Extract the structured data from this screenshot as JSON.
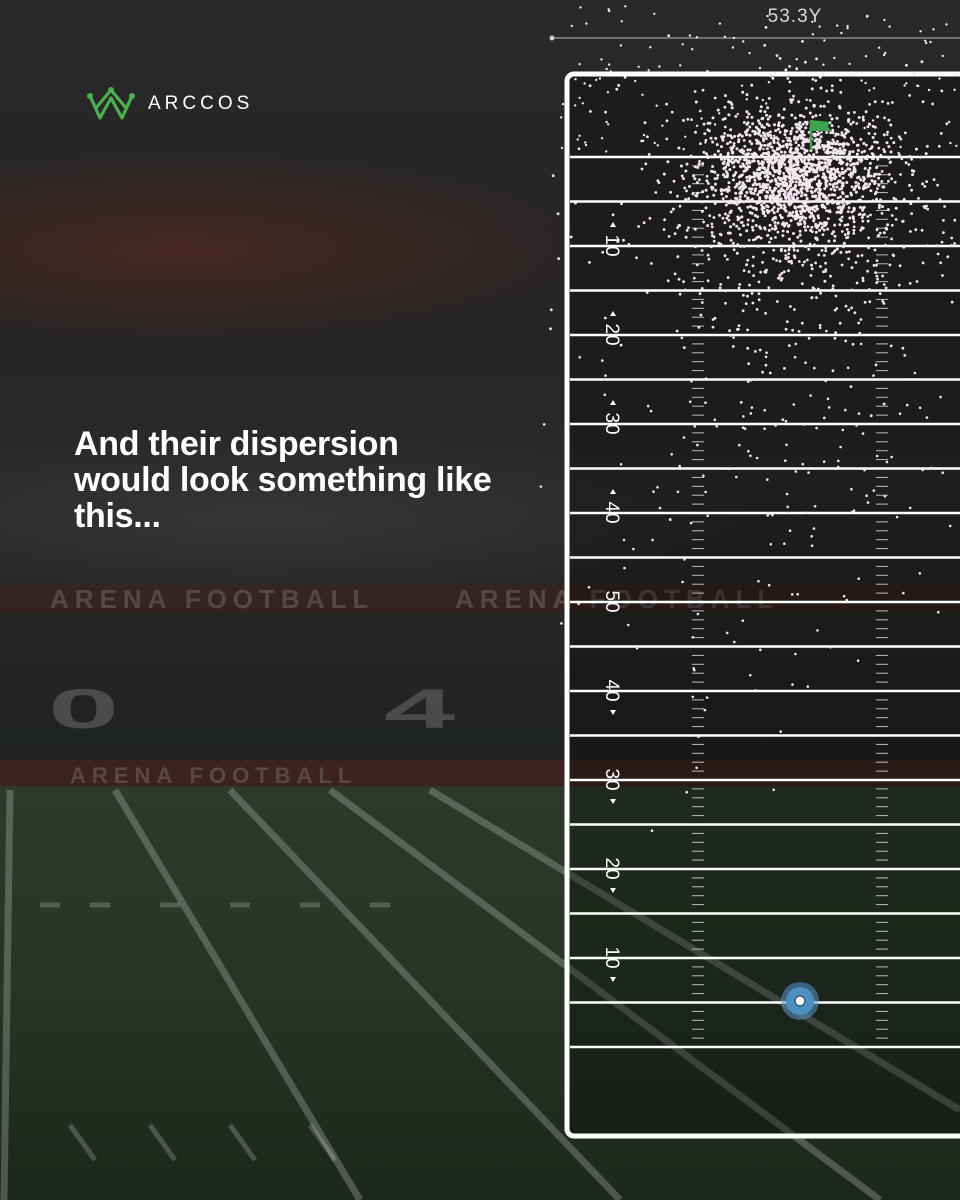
{
  "brand": {
    "name": "ARCCOS",
    "logo_icon": "crown-icon",
    "accent_color": "#4caf50"
  },
  "headline": "And their dispersion would look something like this...",
  "field": {
    "width_label": "53.3Y",
    "yard_numbers": [
      "10",
      "20",
      "30",
      "40",
      "50",
      "40",
      "30",
      "20",
      "10"
    ],
    "line_color": "#ffffff",
    "shot_color": "#f3e6ee",
    "flag_color": "#3fa34d",
    "tee_color": "#4f8fc0"
  },
  "background": {
    "stadium_signage": "ARENA FOOTBALL",
    "turf_numbers": [
      "0",
      "4"
    ]
  }
}
